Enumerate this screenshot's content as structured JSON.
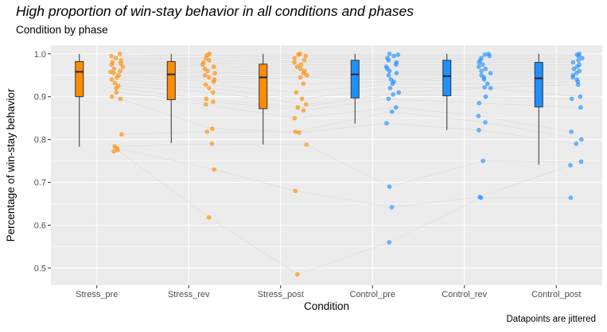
{
  "title": "High proportion of win-stay behavior in all conditions and phases",
  "subtitle": "Condition by phase",
  "caption": "Datapoints are jittered",
  "colors": {
    "stress": "#ff8c00",
    "control": "#1e90ff",
    "panel": "#ebebeb",
    "grid": "#ffffff",
    "line": "#d4d4d4"
  },
  "chart_data": {
    "type": "box",
    "xlabel": "Condition",
    "ylabel": "Percentage of win-stay behavior",
    "categories": [
      "Stress_pre",
      "Stress_rev",
      "Stress_post",
      "Control_pre",
      "Control_rev",
      "Control_post"
    ],
    "ylim": [
      0.46,
      1.02
    ],
    "yticks": [
      0.5,
      0.6,
      0.7,
      0.8,
      0.9,
      1.0
    ],
    "ytick_labels": [
      "0.5",
      "0.6",
      "0.7",
      "0.8",
      "0.9",
      "1.0"
    ],
    "grid": true,
    "boxes": [
      {
        "category": "Stress_pre",
        "group": "stress",
        "min": 0.783,
        "q1": 0.9,
        "median": 0.958,
        "q3": 0.982,
        "max": 1.0
      },
      {
        "category": "Stress_rev",
        "group": "stress",
        "min": 0.792,
        "q1": 0.893,
        "median": 0.952,
        "q3": 0.982,
        "max": 1.0
      },
      {
        "category": "Stress_post",
        "group": "stress",
        "min": 0.788,
        "q1": 0.872,
        "median": 0.945,
        "q3": 0.976,
        "max": 1.0
      },
      {
        "category": "Control_pre",
        "group": "control",
        "min": 0.837,
        "q1": 0.897,
        "median": 0.952,
        "q3": 0.985,
        "max": 1.0
      },
      {
        "category": "Control_rev",
        "group": "control",
        "min": 0.822,
        "q1": 0.902,
        "median": 0.948,
        "q3": 0.985,
        "max": 1.0
      },
      {
        "category": "Control_post",
        "group": "control",
        "min": 0.741,
        "q1": 0.876,
        "median": 0.943,
        "q3": 0.98,
        "max": 1.0
      }
    ],
    "points": [
      [
        1.0,
        0.995,
        0.99,
        0.985,
        0.98,
        0.978,
        0.975,
        0.97,
        0.965,
        0.96,
        0.958,
        0.955,
        0.95,
        0.945,
        0.94,
        0.932,
        0.925,
        0.92,
        0.91,
        0.9,
        0.895,
        0.812,
        0.784,
        0.78,
        0.775,
        0.772
      ],
      [
        1.0,
        0.997,
        0.99,
        0.985,
        0.98,
        0.975,
        0.97,
        0.965,
        0.96,
        0.955,
        0.95,
        0.945,
        0.94,
        0.935,
        0.928,
        0.92,
        0.91,
        0.895,
        0.888,
        0.882,
        0.825,
        0.818,
        0.79,
        0.73,
        0.618
      ],
      [
        1.0,
        0.998,
        0.995,
        0.99,
        0.985,
        0.98,
        0.975,
        0.97,
        0.965,
        0.96,
        0.955,
        0.95,
        0.945,
        0.93,
        0.91,
        0.895,
        0.882,
        0.875,
        0.868,
        0.85,
        0.818,
        0.816,
        0.788,
        0.68,
        0.485
      ],
      [
        1.0,
        0.998,
        0.995,
        0.99,
        0.985,
        0.98,
        0.975,
        0.97,
        0.965,
        0.96,
        0.955,
        0.95,
        0.94,
        0.935,
        0.93,
        0.92,
        0.91,
        0.905,
        0.895,
        0.875,
        0.865,
        0.838,
        0.69,
        0.642,
        0.56
      ],
      [
        1.0,
        0.998,
        0.995,
        0.99,
        0.985,
        0.98,
        0.975,
        0.97,
        0.965,
        0.96,
        0.955,
        0.95,
        0.945,
        0.94,
        0.93,
        0.922,
        0.92,
        0.9,
        0.885,
        0.855,
        0.84,
        0.822,
        0.75,
        0.666,
        0.664
      ],
      [
        1.0,
        0.998,
        0.995,
        0.99,
        0.985,
        0.98,
        0.975,
        0.97,
        0.965,
        0.96,
        0.955,
        0.95,
        0.945,
        0.94,
        0.935,
        0.928,
        0.9,
        0.895,
        0.875,
        0.818,
        0.8,
        0.79,
        0.748,
        0.74,
        0.664
      ]
    ]
  }
}
